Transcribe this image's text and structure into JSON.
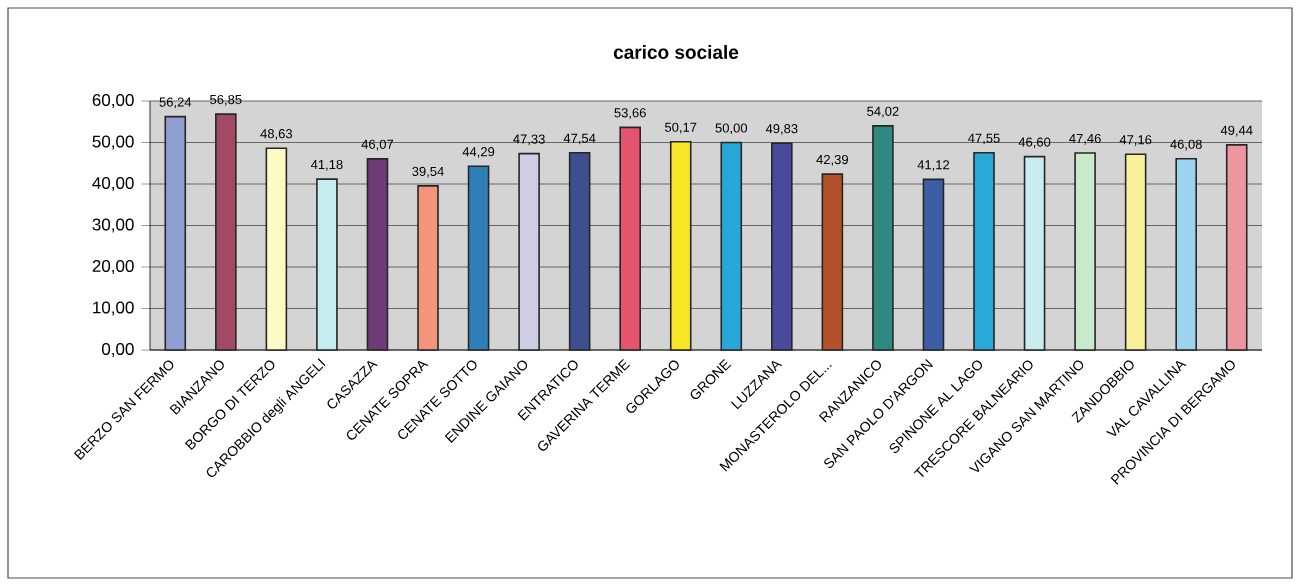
{
  "chart_data": {
    "type": "bar",
    "title": "carico sociale",
    "categories": [
      "BERZO SAN FERMO",
      "BIANZANO",
      "BORGO DI TERZO",
      "CAROBBIO degli ANGELI",
      "CASAZZA",
      "CENATE SOPRA",
      "CENATE SOTTO",
      "ENDINE GAIANO",
      "ENTRATICO",
      "GAVERINA TERME",
      "GORLAGO",
      "GRONE",
      "LUZZANA",
      "MONASTEROLO DEL...",
      "RANZANICO",
      "SAN PAOLO D'ARGON",
      "SPINONE AL LAGO",
      "TRESCORE BALNEARIO",
      "VIGANO SAN MARTINO",
      "ZANDOBBIO",
      "VAL CAVALLINA",
      "PROVINCIA DI BERGAMO"
    ],
    "values": [
      56.24,
      56.85,
      48.63,
      41.18,
      46.07,
      39.54,
      44.29,
      47.33,
      47.54,
      53.66,
      50.17,
      50.0,
      49.83,
      42.39,
      54.02,
      41.12,
      47.55,
      46.6,
      47.46,
      47.16,
      46.08,
      49.44
    ],
    "value_labels": [
      "56,24",
      "56,85",
      "48,63",
      "41,18",
      "46,07",
      "39,54",
      "44,29",
      "47,33",
      "47,54",
      "53,66",
      "50,17",
      "50,00",
      "49,83",
      "42,39",
      "54,02",
      "41,12",
      "47,55",
      "46,60",
      "47,46",
      "47,16",
      "46,08",
      "49,44"
    ],
    "colors": [
      "#8e9fd0",
      "#a24a64",
      "#fdfbc4",
      "#c5ecef",
      "#6e3a78",
      "#f2957a",
      "#2e7fb8",
      "#cfcde3",
      "#3d4f8e",
      "#e5536e",
      "#f7e628",
      "#27a8d8",
      "#4a4a9c",
      "#b4512a",
      "#2e8a80",
      "#3c5ea6",
      "#27aad8",
      "#c8ecf0",
      "#c9eac8",
      "#f8f09a",
      "#9cd3ef",
      "#ee96a0"
    ],
    "ylim": [
      0,
      60
    ],
    "yticks": [
      {
        "value": 0,
        "label": "0,00"
      },
      {
        "value": 10,
        "label": "10,00"
      },
      {
        "value": 20,
        "label": "20,00"
      },
      {
        "value": 30,
        "label": "30,00"
      },
      {
        "value": 40,
        "label": "40,00"
      },
      {
        "value": 50,
        "label": "50,00"
      },
      {
        "value": 60,
        "label": "60,00"
      }
    ],
    "grid": "y"
  }
}
